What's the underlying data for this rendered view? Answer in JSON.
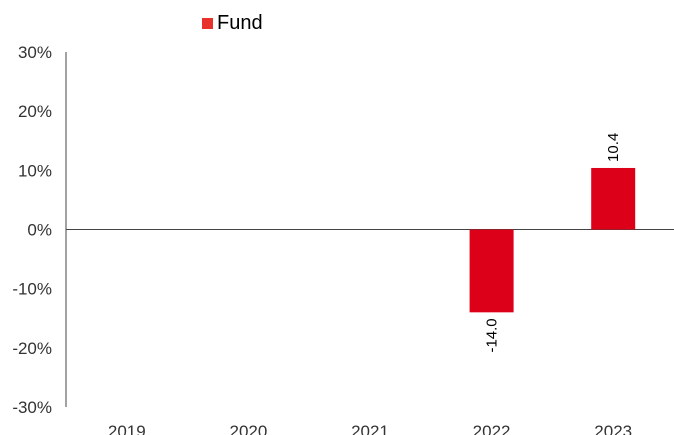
{
  "chart_data": {
    "type": "bar",
    "categories": [
      "2019",
      "2020",
      "2021",
      "2022",
      "2023"
    ],
    "series": [
      {
        "name": "Fund",
        "values": [
          null,
          null,
          null,
          -14.0,
          10.4
        ],
        "labels": [
          "",
          "",
          "",
          "-14.0",
          "10.4"
        ]
      }
    ],
    "ylim": [
      -30,
      30
    ],
    "yticks": [
      30,
      20,
      10,
      0,
      -10,
      -20,
      -30
    ],
    "ytick_labels": [
      "30%",
      "20%",
      "10%",
      "0%",
      "-10%",
      "-20%",
      "-30%"
    ],
    "grid": false,
    "legend_position": "top",
    "colors": {
      "bar": "#dc0018",
      "legend_swatch": "#e8312a",
      "axis": "#444444",
      "text": "#333333"
    }
  }
}
